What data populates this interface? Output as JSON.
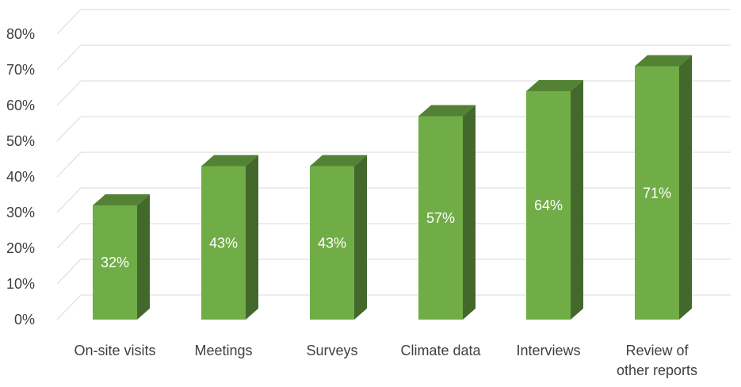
{
  "chart_data": {
    "type": "bar",
    "style": "3d-column",
    "categories": [
      "On-site visits",
      "Meetings",
      "Surveys",
      "Climate data",
      "Interviews",
      "Review of other reports"
    ],
    "category_lines": [
      [
        "On-site visits"
      ],
      [
        "Meetings"
      ],
      [
        "Surveys"
      ],
      [
        "Climate data"
      ],
      [
        "Interviews"
      ],
      [
        "Review of",
        "other reports"
      ]
    ],
    "values": [
      32,
      43,
      43,
      57,
      64,
      71
    ],
    "data_labels": [
      "32%",
      "43%",
      "43%",
      "57%",
      "64%",
      "71%"
    ],
    "ylim": [
      0,
      80
    ],
    "yticks": [
      0,
      10,
      20,
      30,
      40,
      50,
      60,
      70,
      80
    ],
    "ytick_labels": [
      "0%",
      "10%",
      "20%",
      "30%",
      "40%",
      "50%",
      "60%",
      "70%",
      "80%"
    ],
    "title": "",
    "xlabel": "",
    "ylabel": "",
    "grid": true,
    "legend": "none",
    "colors": {
      "front": "#70ad47",
      "top": "#548235",
      "side": "#43682b",
      "grid": "#d9d9d9",
      "text": "#404040",
      "label": "#ffffff"
    }
  }
}
